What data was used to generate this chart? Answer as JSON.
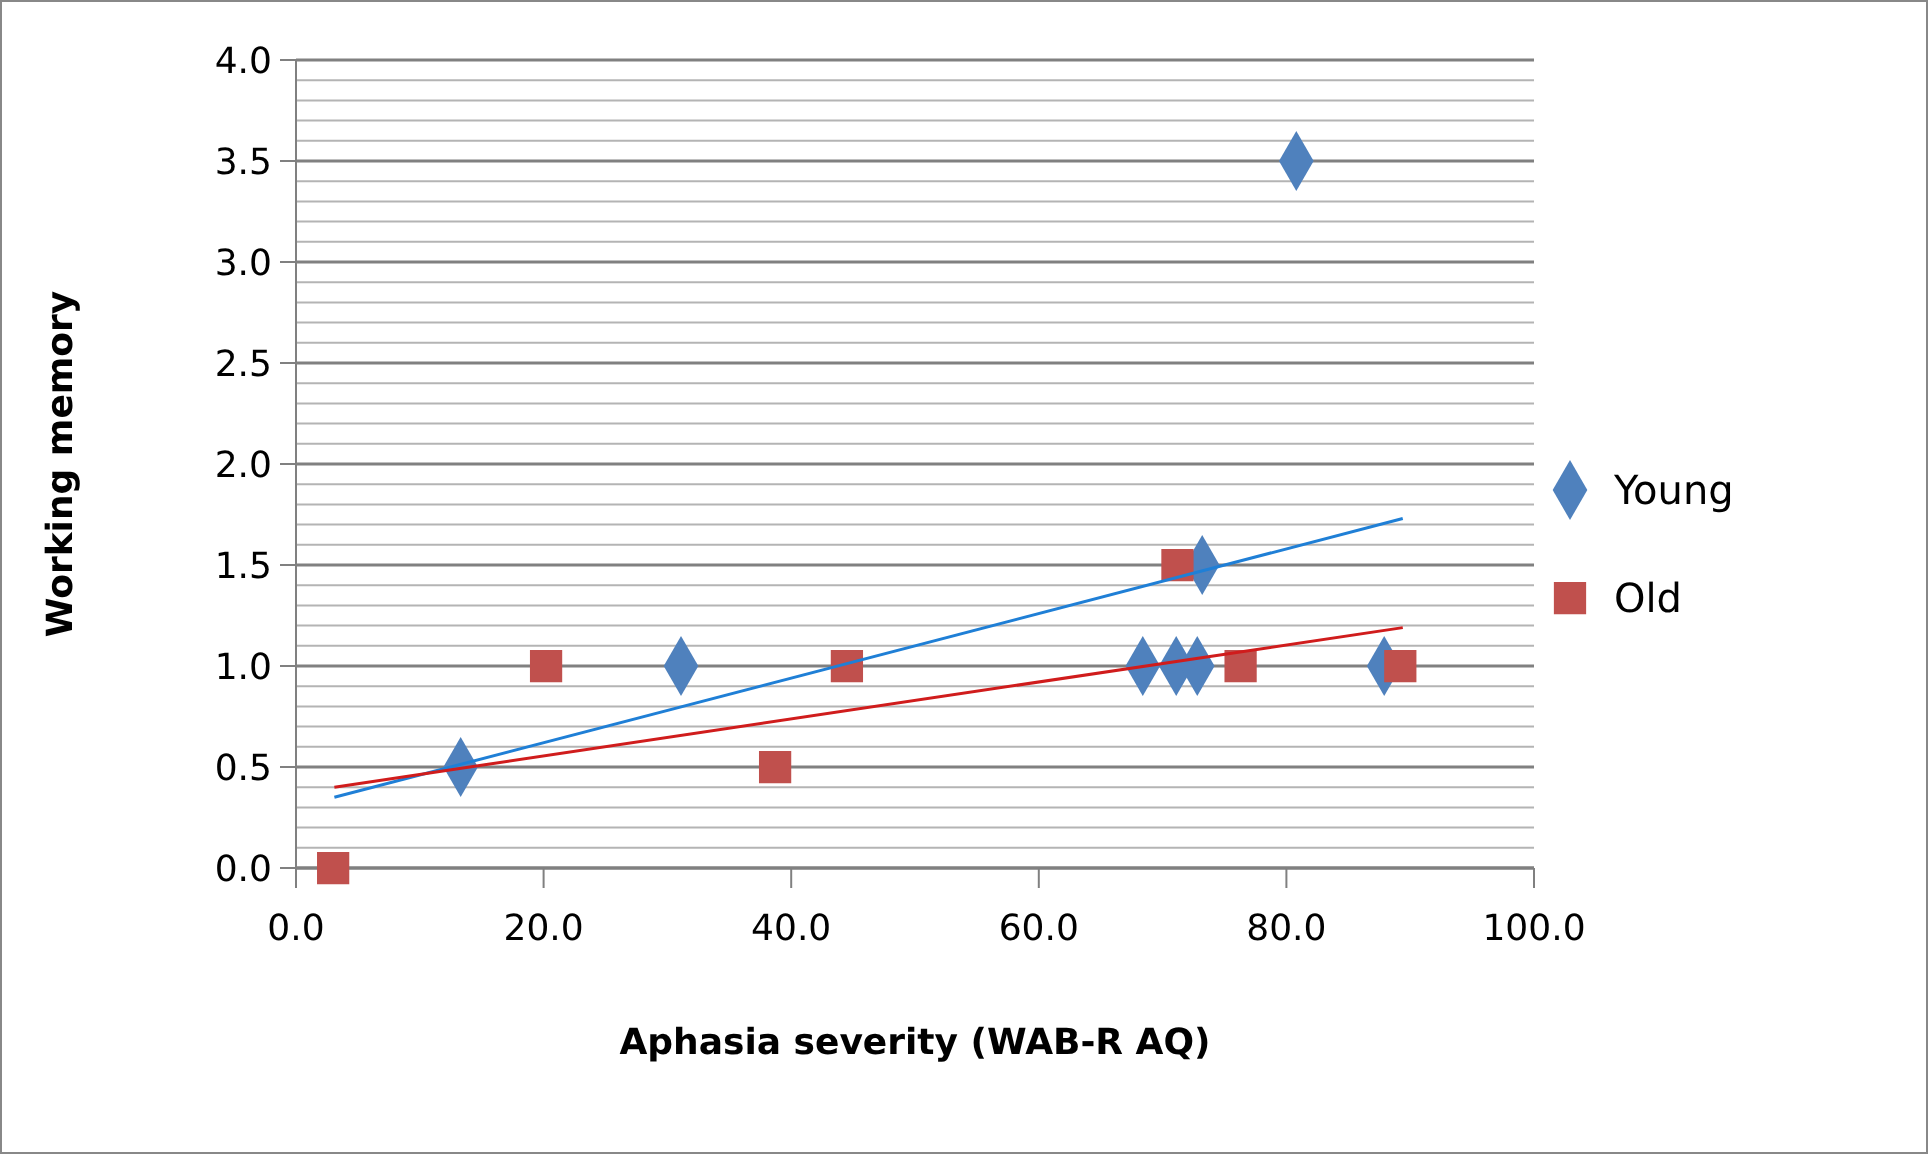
{
  "chart_data": {
    "type": "scatter",
    "xlabel": "Aphasia severity (WAB-R AQ)",
    "ylabel": "Working memory",
    "xlim": [
      0,
      100
    ],
    "xticks": [
      {
        "value": 0,
        "label": "0.0"
      },
      {
        "value": 20,
        "label": "20.0"
      },
      {
        "value": 40,
        "label": "40.0"
      },
      {
        "value": 60,
        "label": "60.0"
      },
      {
        "value": 80,
        "label": "80.0"
      },
      {
        "value": 100,
        "label": "100.0"
      }
    ],
    "ylim": [
      0,
      4
    ],
    "yticks": [
      {
        "value": 0,
        "label": "0.0"
      },
      {
        "value": 0.1,
        "label": null
      },
      {
        "value": 0.2,
        "label": null
      },
      {
        "value": 0.3,
        "label": null
      },
      {
        "value": 0.4,
        "label": null
      },
      {
        "value": 0.5,
        "label": "0.5"
      },
      {
        "value": 0.6,
        "label": null
      },
      {
        "value": 0.7,
        "label": null
      },
      {
        "value": 0.8,
        "label": null
      },
      {
        "value": 0.9,
        "label": null
      },
      {
        "value": 1,
        "label": "1.0"
      },
      {
        "value": 1.1,
        "label": null
      },
      {
        "value": 1.2,
        "label": null
      },
      {
        "value": 1.3,
        "label": null
      },
      {
        "value": 1.4,
        "label": null
      },
      {
        "value": 1.5,
        "label": "1.5"
      },
      {
        "value": 1.6,
        "label": null
      },
      {
        "value": 1.7,
        "label": null
      },
      {
        "value": 1.8,
        "label": null
      },
      {
        "value": 1.9,
        "label": null
      },
      {
        "value": 2,
        "label": "2.0"
      },
      {
        "value": 2.1,
        "label": null
      },
      {
        "value": 2.2,
        "label": null
      },
      {
        "value": 2.3,
        "label": null
      },
      {
        "value": 2.4,
        "label": null
      },
      {
        "value": 2.5,
        "label": "2.5"
      },
      {
        "value": 2.6,
        "label": null
      },
      {
        "value": 2.7,
        "label": null
      },
      {
        "value": 2.8,
        "label": null
      },
      {
        "value": 2.9,
        "label": null
      },
      {
        "value": 3,
        "label": "3.0"
      },
      {
        "value": 3.1,
        "label": null
      },
      {
        "value": 3.2,
        "label": null
      },
      {
        "value": 3.3,
        "label": null
      },
      {
        "value": 3.4,
        "label": null
      },
      {
        "value": 3.5,
        "label": "3.5"
      },
      {
        "value": 3.6,
        "label": null
      },
      {
        "value": 3.7,
        "label": null
      },
      {
        "value": 3.8,
        "label": null
      },
      {
        "value": 3.9,
        "label": null
      },
      {
        "value": 4,
        "label": "4.0"
      }
    ],
    "grid": "y",
    "legend": "right",
    "series": [
      {
        "name": "Young",
        "color": "#4f81bd",
        "marker": "diamond",
        "x": [
          13.3,
          31.1,
          68.4,
          71.1,
          72.8,
          73.2,
          80.8,
          87.9
        ],
        "values": [
          0.5,
          1,
          1,
          1,
          1,
          1.5,
          3.5,
          1
        ]
      },
      {
        "name": "Old",
        "color": "#c0504d",
        "marker": "square",
        "x": [
          3,
          20.2,
          38.7,
          44.5,
          71.2,
          76.3,
          89.2
        ],
        "values": [
          0,
          1,
          0.5,
          1,
          1.5,
          1,
          1
        ]
      },
      {
        "type": "line",
        "color": "#1f7fd6",
        "marker": "none",
        "x": [
          3.1,
          89.4
        ],
        "values": [
          0.35,
          1.73
        ]
      },
      {
        "type": "line",
        "color": "#d01c1c",
        "marker": "none",
        "x": [
          3.1,
          89.4
        ],
        "values": [
          0.4,
          1.19
        ]
      }
    ]
  }
}
